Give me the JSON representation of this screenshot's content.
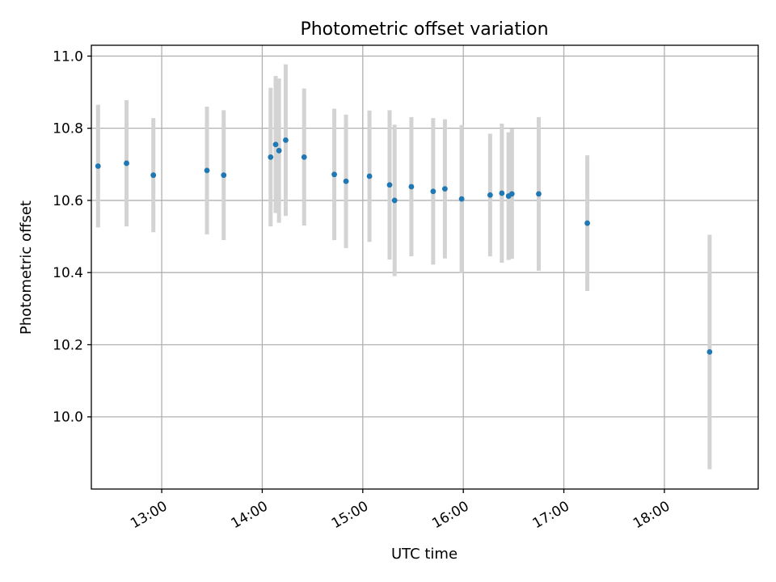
{
  "chart_data": {
    "type": "scatter",
    "title": "Photometric offset variation",
    "xlabel": "UTC time",
    "ylabel": "Photometric offset",
    "x_ticks": [
      "13:00",
      "14:00",
      "15:00",
      "16:00",
      "17:00",
      "18:00"
    ],
    "y_ticks": [
      "10.0",
      "10.2",
      "10.4",
      "10.6",
      "10.8",
      "11.0"
    ],
    "xlim": [
      "12:18",
      "18:56"
    ],
    "ylim": [
      9.8,
      11.03
    ],
    "grid": true,
    "marker_color": "#1f77b4",
    "errorbar_color": "#d3d3d3",
    "series": [
      {
        "points": [
          {
            "x": "12:22",
            "y": 10.695,
            "err": 0.17
          },
          {
            "x": "12:39",
            "y": 10.703,
            "err": 0.175
          },
          {
            "x": "12:55",
            "y": 10.67,
            "err": 0.158
          },
          {
            "x": "13:27",
            "y": 10.683,
            "err": 0.177
          },
          {
            "x": "13:37",
            "y": 10.67,
            "err": 0.18
          },
          {
            "x": "14:05",
            "y": 10.72,
            "err": 0.192
          },
          {
            "x": "14:08",
            "y": 10.755,
            "err": 0.19
          },
          {
            "x": "14:10",
            "y": 10.738,
            "err": 0.2
          },
          {
            "x": "14:14",
            "y": 10.767,
            "err": 0.21
          },
          {
            "x": "14:25",
            "y": 10.72,
            "err": 0.19
          },
          {
            "x": "14:43",
            "y": 10.672,
            "err": 0.182
          },
          {
            "x": "14:50",
            "y": 10.653,
            "err": 0.185
          },
          {
            "x": "15:04",
            "y": 10.667,
            "err": 0.182
          },
          {
            "x": "15:16",
            "y": 10.643,
            "err": 0.207
          },
          {
            "x": "15:19",
            "y": 10.6,
            "err": 0.21
          },
          {
            "x": "15:29",
            "y": 10.638,
            "err": 0.193
          },
          {
            "x": "15:42",
            "y": 10.625,
            "err": 0.203
          },
          {
            "x": "15:49",
            "y": 10.632,
            "err": 0.193
          },
          {
            "x": "15:59",
            "y": 10.604,
            "err": 0.205
          },
          {
            "x": "16:16",
            "y": 10.615,
            "err": 0.17
          },
          {
            "x": "16:23",
            "y": 10.62,
            "err": 0.193
          },
          {
            "x": "16:27",
            "y": 10.612,
            "err": 0.177
          },
          {
            "x": "16:29",
            "y": 10.618,
            "err": 0.18
          },
          {
            "x": "16:45",
            "y": 10.618,
            "err": 0.213
          },
          {
            "x": "17:14",
            "y": 10.537,
            "err": 0.188
          },
          {
            "x": "18:27",
            "y": 10.18,
            "err": 0.325
          }
        ]
      }
    ]
  }
}
